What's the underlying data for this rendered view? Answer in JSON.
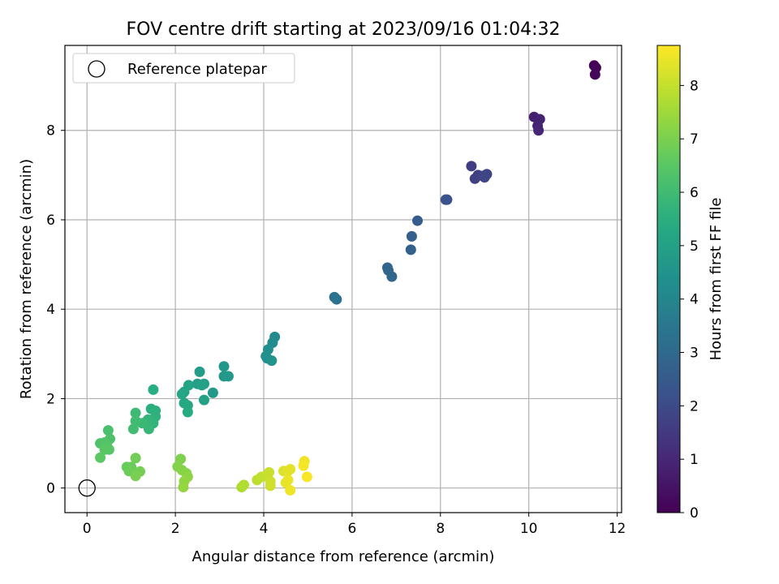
{
  "chart_data": {
    "type": "scatter",
    "title": "FOV centre drift starting at 2023/09/16 01:04:32",
    "xlabel": "Angular distance from reference (arcmin)",
    "ylabel": "Rotation from reference (arcmin)",
    "colorbar_label": "Hours from first FF file",
    "colormap": "viridis",
    "xlim": [
      -0.5,
      12.1
    ],
    "ylim": [
      -0.55,
      9.9
    ],
    "x_ticks": [
      0,
      2,
      4,
      6,
      8,
      10,
      12
    ],
    "y_ticks": [
      0,
      2,
      4,
      6,
      8
    ],
    "colorbar_range": [
      0,
      8.75
    ],
    "colorbar_ticks": [
      0,
      1,
      2,
      3,
      4,
      5,
      6,
      7,
      8
    ],
    "grid": true,
    "legend": {
      "placement": "top-left",
      "entries": [
        {
          "label": "Reference platepar",
          "marker": "hollow-circle"
        }
      ]
    },
    "reference_point": {
      "x": 0,
      "y": 0
    },
    "points": [
      {
        "x": 11.48,
        "y": 9.45,
        "c": 0.05
      },
      {
        "x": 11.52,
        "y": 9.4,
        "c": 0.1
      },
      {
        "x": 11.5,
        "y": 9.25,
        "c": 0.15
      },
      {
        "x": 10.12,
        "y": 8.3,
        "c": 0.8
      },
      {
        "x": 10.25,
        "y": 8.25,
        "c": 0.85
      },
      {
        "x": 10.2,
        "y": 8.1,
        "c": 0.9
      },
      {
        "x": 10.22,
        "y": 8.0,
        "c": 0.95
      },
      {
        "x": 8.7,
        "y": 7.2,
        "c": 1.6
      },
      {
        "x": 8.85,
        "y": 7.0,
        "c": 1.65
      },
      {
        "x": 8.78,
        "y": 6.92,
        "c": 1.7
      },
      {
        "x": 8.95,
        "y": 6.98,
        "c": 1.75
      },
      {
        "x": 9.05,
        "y": 7.02,
        "c": 1.8
      },
      {
        "x": 9.0,
        "y": 6.95,
        "c": 1.85
      },
      {
        "x": 8.12,
        "y": 6.45,
        "c": 2.2
      },
      {
        "x": 8.15,
        "y": 6.45,
        "c": 2.25
      },
      {
        "x": 7.48,
        "y": 5.98,
        "c": 2.6
      },
      {
        "x": 7.35,
        "y": 5.63,
        "c": 2.65
      },
      {
        "x": 7.33,
        "y": 5.33,
        "c": 2.7
      },
      {
        "x": 6.8,
        "y": 4.93,
        "c": 2.85
      },
      {
        "x": 6.82,
        "y": 4.87,
        "c": 2.9
      },
      {
        "x": 6.9,
        "y": 4.73,
        "c": 2.95
      },
      {
        "x": 5.6,
        "y": 4.27,
        "c": 3.3
      },
      {
        "x": 5.65,
        "y": 4.22,
        "c": 3.35
      },
      {
        "x": 4.25,
        "y": 3.38,
        "c": 4.2
      },
      {
        "x": 4.2,
        "y": 3.25,
        "c": 4.25
      },
      {
        "x": 4.1,
        "y": 3.1,
        "c": 4.3
      },
      {
        "x": 4.05,
        "y": 2.95,
        "c": 4.35
      },
      {
        "x": 4.08,
        "y": 2.9,
        "c": 4.4
      },
      {
        "x": 4.18,
        "y": 2.85,
        "c": 4.45
      },
      {
        "x": 3.1,
        "y": 2.72,
        "c": 4.6
      },
      {
        "x": 3.1,
        "y": 2.5,
        "c": 4.65
      },
      {
        "x": 3.2,
        "y": 2.5,
        "c": 4.7
      },
      {
        "x": 2.85,
        "y": 2.13,
        "c": 4.75
      },
      {
        "x": 2.55,
        "y": 2.6,
        "c": 4.85
      },
      {
        "x": 2.5,
        "y": 2.33,
        "c": 4.9
      },
      {
        "x": 2.65,
        "y": 2.33,
        "c": 4.95
      },
      {
        "x": 2.6,
        "y": 2.3,
        "c": 5.0
      },
      {
        "x": 2.65,
        "y": 1.97,
        "c": 5.05
      },
      {
        "x": 2.3,
        "y": 2.3,
        "c": 5.1
      },
      {
        "x": 2.2,
        "y": 2.15,
        "c": 5.15
      },
      {
        "x": 2.15,
        "y": 2.1,
        "c": 5.2
      },
      {
        "x": 2.2,
        "y": 1.9,
        "c": 5.25
      },
      {
        "x": 2.28,
        "y": 1.85,
        "c": 5.3
      },
      {
        "x": 2.28,
        "y": 1.7,
        "c": 5.35
      },
      {
        "x": 1.5,
        "y": 2.2,
        "c": 5.5
      },
      {
        "x": 1.45,
        "y": 1.77,
        "c": 5.55
      },
      {
        "x": 1.55,
        "y": 1.73,
        "c": 5.6
      },
      {
        "x": 1.55,
        "y": 1.6,
        "c": 5.65
      },
      {
        "x": 1.5,
        "y": 1.45,
        "c": 5.7
      },
      {
        "x": 1.38,
        "y": 1.53,
        "c": 5.75
      },
      {
        "x": 1.35,
        "y": 1.43,
        "c": 5.8
      },
      {
        "x": 1.4,
        "y": 1.32,
        "c": 5.85
      },
      {
        "x": 1.25,
        "y": 1.45,
        "c": 5.9
      },
      {
        "x": 1.1,
        "y": 1.68,
        "c": 5.95
      },
      {
        "x": 1.1,
        "y": 1.5,
        "c": 6.0
      },
      {
        "x": 1.05,
        "y": 1.32,
        "c": 6.05
      },
      {
        "x": 0.48,
        "y": 1.29,
        "c": 6.2
      },
      {
        "x": 0.52,
        "y": 1.1,
        "c": 6.25
      },
      {
        "x": 0.3,
        "y": 1.0,
        "c": 6.3
      },
      {
        "x": 0.4,
        "y": 1.02,
        "c": 6.35
      },
      {
        "x": 0.45,
        "y": 0.95,
        "c": 6.4
      },
      {
        "x": 0.5,
        "y": 0.86,
        "c": 6.45
      },
      {
        "x": 0.4,
        "y": 0.86,
        "c": 6.5
      },
      {
        "x": 0.3,
        "y": 0.68,
        "c": 6.55
      },
      {
        "x": 0.9,
        "y": 0.47,
        "c": 6.7
      },
      {
        "x": 1.0,
        "y": 0.47,
        "c": 6.75
      },
      {
        "x": 0.95,
        "y": 0.38,
        "c": 6.8
      },
      {
        "x": 1.1,
        "y": 0.67,
        "c": 6.85
      },
      {
        "x": 1.2,
        "y": 0.37,
        "c": 6.9
      },
      {
        "x": 1.1,
        "y": 0.27,
        "c": 6.95
      },
      {
        "x": 2.12,
        "y": 0.65,
        "c": 7.05
      },
      {
        "x": 2.05,
        "y": 0.48,
        "c": 7.1
      },
      {
        "x": 2.15,
        "y": 0.4,
        "c": 7.15
      },
      {
        "x": 2.25,
        "y": 0.33,
        "c": 7.2
      },
      {
        "x": 2.28,
        "y": 0.25,
        "c": 7.25
      },
      {
        "x": 2.2,
        "y": 0.15,
        "c": 7.3
      },
      {
        "x": 2.18,
        "y": 0.02,
        "c": 7.35
      },
      {
        "x": 3.5,
        "y": 0.02,
        "c": 7.7
      },
      {
        "x": 3.55,
        "y": 0.07,
        "c": 7.75
      },
      {
        "x": 3.85,
        "y": 0.18,
        "c": 7.9
      },
      {
        "x": 3.95,
        "y": 0.25,
        "c": 7.95
      },
      {
        "x": 4.05,
        "y": 0.27,
        "c": 8.0
      },
      {
        "x": 4.12,
        "y": 0.35,
        "c": 8.05
      },
      {
        "x": 4.15,
        "y": 0.15,
        "c": 8.1
      },
      {
        "x": 4.15,
        "y": 0.05,
        "c": 8.15
      },
      {
        "x": 4.45,
        "y": 0.38,
        "c": 8.3
      },
      {
        "x": 4.55,
        "y": 0.38,
        "c": 8.35
      },
      {
        "x": 4.6,
        "y": 0.42,
        "c": 8.4
      },
      {
        "x": 4.5,
        "y": 0.12,
        "c": 8.45
      },
      {
        "x": 4.55,
        "y": 0.18,
        "c": 8.5
      },
      {
        "x": 4.6,
        "y": -0.05,
        "c": 8.55
      },
      {
        "x": 4.92,
        "y": 0.6,
        "c": 8.6
      },
      {
        "x": 4.9,
        "y": 0.5,
        "c": 8.65
      },
      {
        "x": 4.98,
        "y": 0.25,
        "c": 8.7
      }
    ]
  }
}
